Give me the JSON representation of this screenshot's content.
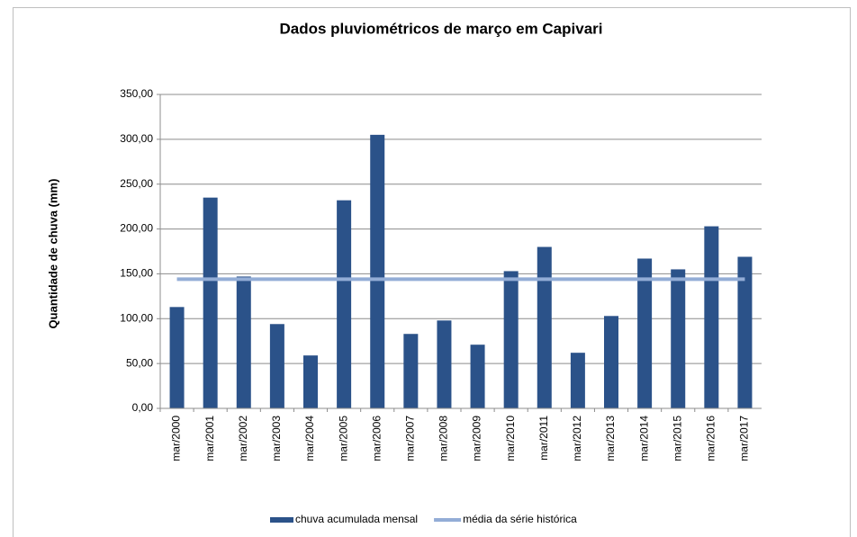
{
  "chart_data": {
    "type": "bar",
    "title": "Dados pluviométricos de março em Capivari",
    "y_label": "Quantidade de chuva (mm)",
    "categories": [
      "mar/2000",
      "mar/2001",
      "mar/2002",
      "mar/2003",
      "mar/2004",
      "mar/2005",
      "mar/2006",
      "mar/2007",
      "mar/2008",
      "mar/2009",
      "mar/2010",
      "mar/2011",
      "mar/2012",
      "mar/2013",
      "mar/2014",
      "mar/2015",
      "mar/2016",
      "mar/2017"
    ],
    "series": [
      {
        "name": "chuva acumulada mensal",
        "type": "bar",
        "color": "#2b5289",
        "values": [
          113,
          235,
          147,
          94,
          59,
          232,
          305,
          83,
          98,
          71,
          153,
          180,
          62,
          103,
          167,
          155,
          203,
          169
        ]
      },
      {
        "name": "média da série histórica",
        "type": "line",
        "color": "#93add6",
        "values": [
          144,
          144,
          144,
          144,
          144,
          144,
          144,
          144,
          144,
          144,
          144,
          144,
          144,
          144,
          144,
          144,
          144,
          144
        ]
      }
    ],
    "ylim": [
      0,
      350
    ],
    "yticks": [
      {
        "value": 0,
        "label": "0,00"
      },
      {
        "value": 50,
        "label": "50,00"
      },
      {
        "value": 100,
        "label": "100,00"
      },
      {
        "value": 150,
        "label": "150,00"
      },
      {
        "value": 200,
        "label": "200,00"
      },
      {
        "value": 250,
        "label": "250,00"
      },
      {
        "value": 300,
        "label": "300,00"
      },
      {
        "value": 350,
        "label": "350,00"
      }
    ],
    "grid": true,
    "legend": "bottom"
  }
}
